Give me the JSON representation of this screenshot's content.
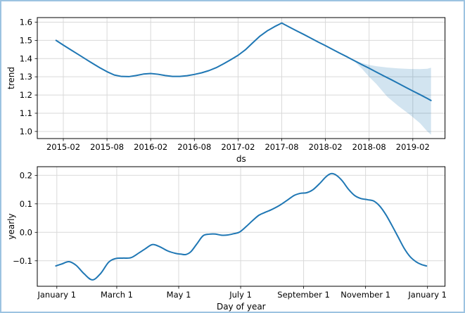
{
  "figure": {
    "border_color": "#9cc3e1",
    "background": "#ffffff"
  },
  "chart_data": [
    {
      "type": "line",
      "name": "trend-component",
      "xlabel": "ds",
      "ylabel": "trend",
      "grid": true,
      "legend": "none",
      "line_color": "#1f77b4",
      "band_color_rgba": "rgba(31,119,180,0.2)",
      "xlim": [
        -2.575,
        53.425
      ],
      "ylim": [
        0.961,
        1.625
      ],
      "x_ticks": [
        {
          "x": 1,
          "label": "2015-02"
        },
        {
          "x": 7,
          "label": "2015-08"
        },
        {
          "x": 13,
          "label": "2016-02"
        },
        {
          "x": 19,
          "label": "2016-08"
        },
        {
          "x": 25,
          "label": "2017-02"
        },
        {
          "x": 31,
          "label": "2017-08"
        },
        {
          "x": 37,
          "label": "2018-02"
        },
        {
          "x": 43,
          "label": "2018-08"
        },
        {
          "x": 49,
          "label": "2019-02"
        }
      ],
      "y_ticks": [
        {
          "y": 1.0,
          "label": "1.0"
        },
        {
          "y": 1.1,
          "label": "1.1"
        },
        {
          "y": 1.2,
          "label": "1.2"
        },
        {
          "y": 1.3,
          "label": "1.3"
        },
        {
          "y": 1.4,
          "label": "1.4"
        },
        {
          "y": 1.5,
          "label": "1.5"
        },
        {
          "y": 1.6,
          "label": "1.6"
        }
      ],
      "x_unit": "months since 2015-01",
      "series": [
        {
          "name": "trend",
          "smooth": false,
          "x": [
            0,
            1,
            2,
            3,
            4,
            5,
            6,
            7,
            8,
            9,
            10,
            11,
            12,
            13,
            14,
            15,
            16,
            17,
            18,
            19,
            20,
            21,
            22,
            23,
            24,
            25,
            26,
            27,
            28,
            29,
            30,
            31,
            32,
            33,
            34,
            35,
            36,
            37,
            38,
            39,
            40,
            40.8,
            42,
            43,
            44,
            45,
            46,
            47,
            48,
            49,
            50,
            51,
            51.5
          ],
          "y": [
            1.5,
            1.474,
            1.449,
            1.424,
            1.399,
            1.374,
            1.35,
            1.328,
            1.31,
            1.302,
            1.301,
            1.307,
            1.315,
            1.318,
            1.314,
            1.307,
            1.302,
            1.302,
            1.306,
            1.313,
            1.322,
            1.334,
            1.35,
            1.371,
            1.394,
            1.418,
            1.448,
            1.486,
            1.523,
            1.552,
            1.575,
            1.595,
            1.574,
            1.553,
            1.533,
            1.512,
            1.491,
            1.471,
            1.45,
            1.429,
            1.409,
            1.392,
            1.367,
            1.347,
            1.326,
            1.305,
            1.285,
            1.264,
            1.243,
            1.222,
            1.202,
            1.181,
            1.17
          ]
        }
      ],
      "band": {
        "name": "trend-uncertainty-interval",
        "x": [
          40.8,
          42,
          43,
          44,
          45.5,
          47,
          48.5,
          50,
          51,
          51.5
        ],
        "upper": [
          1.392,
          1.376,
          1.365,
          1.358,
          1.351,
          1.346,
          1.343,
          1.342,
          1.344,
          1.35
        ],
        "lower": [
          1.392,
          1.345,
          1.3,
          1.26,
          1.19,
          1.14,
          1.095,
          1.045,
          1.0,
          0.982
        ]
      }
    },
    {
      "type": "line",
      "name": "yearly-component",
      "xlabel": "Day of year",
      "ylabel": "yearly",
      "grid": true,
      "legend": "none",
      "line_color": "#1f77b4",
      "xlim": [
        -18.25,
        383.25
      ],
      "ylim": [
        -0.1894,
        0.2304
      ],
      "x_ticks": [
        {
          "x": 1,
          "label": "January 1"
        },
        {
          "x": 60,
          "label": "March 1"
        },
        {
          "x": 121,
          "label": "May 1"
        },
        {
          "x": 182,
          "label": "July 1"
        },
        {
          "x": 244,
          "label": "September 1"
        },
        {
          "x": 305,
          "label": "November 1"
        },
        {
          "x": 366,
          "label": "January 1"
        }
      ],
      "y_ticks": [
        {
          "y": -0.1,
          "label": "−0.1"
        },
        {
          "y": 0.0,
          "label": "0.0"
        },
        {
          "y": 0.1,
          "label": "0.1"
        },
        {
          "y": 0.2,
          "label": "0.2"
        }
      ],
      "x_unit": "day of year",
      "series": [
        {
          "name": "yearly",
          "smooth": true,
          "x": [
            0,
            6,
            13,
            20,
            28,
            36,
            44,
            52,
            59,
            66,
            74,
            82,
            88,
            95,
            102,
            110,
            118,
            123,
            128,
            133,
            139,
            145,
            151,
            157,
            163,
            169,
            175,
            181,
            188,
            194,
            200,
            206,
            212,
            220,
            228,
            235,
            241,
            247,
            253,
            260,
            266,
            271,
            276,
            282,
            288,
            294,
            300,
            307,
            313,
            319,
            325,
            331,
            337,
            343,
            349,
            355,
            360,
            365
          ],
          "y": [
            -0.118,
            -0.111,
            -0.103,
            -0.116,
            -0.146,
            -0.167,
            -0.145,
            -0.105,
            -0.092,
            -0.0905,
            -0.089,
            -0.072,
            -0.058,
            -0.043,
            -0.05,
            -0.065,
            -0.074,
            -0.0765,
            -0.078,
            -0.068,
            -0.04,
            -0.012,
            -0.0065,
            -0.006,
            -0.01,
            -0.0095,
            -0.005,
            0.001,
            0.022,
            0.042,
            0.06,
            0.07,
            0.079,
            0.094,
            0.113,
            0.13,
            0.137,
            0.139,
            0.149,
            0.172,
            0.195,
            0.206,
            0.201,
            0.181,
            0.152,
            0.13,
            0.119,
            0.1145,
            0.11,
            0.092,
            0.062,
            0.024,
            -0.016,
            -0.056,
            -0.086,
            -0.104,
            -0.113,
            -0.118
          ]
        }
      ]
    }
  ],
  "style": {
    "grid_color": "#d9d9d9",
    "spine_color": "#000000",
    "tick_color": "#000000"
  }
}
